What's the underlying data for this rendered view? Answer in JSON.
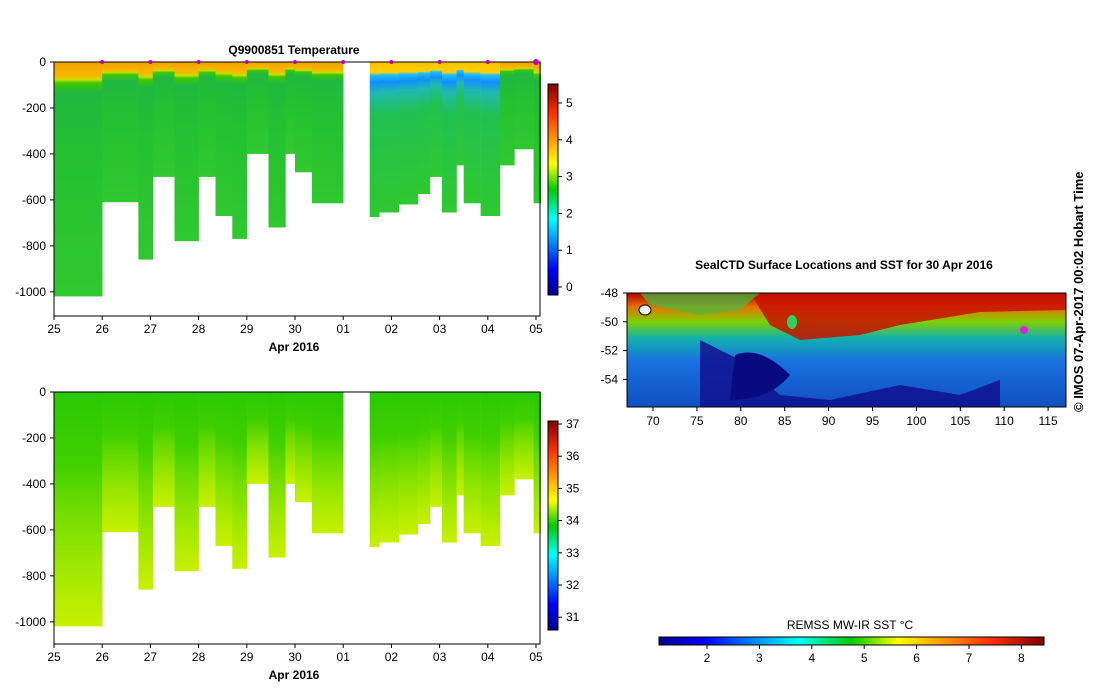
{
  "top_chart": {
    "title": "Q9900851  Temperature",
    "xlabel": "Apr 2016",
    "x_ticks": [
      "25",
      "26",
      "27",
      "28",
      "29",
      "30",
      "01",
      "02",
      "03",
      "04",
      "05"
    ],
    "y_ticks": [
      "0",
      "-200",
      "-400",
      "-600",
      "-800",
      "-1000"
    ],
    "colorbar_ticks": [
      "5",
      "4",
      "3",
      "2",
      "1",
      "0"
    ]
  },
  "bottom_chart": {
    "xlabel": "Apr 2016",
    "x_ticks": [
      "25",
      "26",
      "27",
      "28",
      "29",
      "30",
      "01",
      "02",
      "03",
      "04",
      "05"
    ],
    "y_ticks": [
      "0",
      "-200",
      "-400",
      "-600",
      "-800",
      "-1000"
    ],
    "colorbar_ticks": [
      "37",
      "36",
      "35",
      "34",
      "33",
      "32",
      "31"
    ]
  },
  "map": {
    "title": "SealCTD Surface Locations and SST for 30 Apr 2016",
    "lat_ticks": [
      "-48",
      "-50",
      "-52",
      "-54"
    ],
    "lon_ticks": [
      "70",
      "75",
      "80",
      "85",
      "90",
      "95",
      "100",
      "105",
      "110",
      "115"
    ],
    "colorbar_title": "REMSS MW-IR SST °C",
    "colorbar_ticks": [
      "2",
      "3",
      "4",
      "5",
      "6",
      "7",
      "8"
    ]
  },
  "credit": "© IMOS 07-Apr-2017 00:02 Hobart Time",
  "chart_data": [
    {
      "type": "heatmap",
      "title": "Q9900851  Temperature",
      "xlabel": "Apr 2016",
      "ylabel": "",
      "xlim": [
        25,
        35.1
      ],
      "ylim": [
        -1100,
        0
      ],
      "clim": [
        -0.2,
        5.6
      ],
      "x_day_labels": [
        "25",
        "26",
        "27",
        "28",
        "29",
        "30",
        "01",
        "02",
        "03",
        "04",
        "05"
      ],
      "profiles": [
        {
          "t0": 25.0,
          "t1": 26.0,
          "depth": 1020
        },
        {
          "t0": 26.0,
          "t1": 26.75,
          "depth": 610
        },
        {
          "t0": 26.75,
          "t1": 27.05,
          "depth": 860
        },
        {
          "t0": 27.05,
          "t1": 27.5,
          "depth": 500
        },
        {
          "t0": 27.5,
          "t1": 28.0,
          "depth": 780
        },
        {
          "t0": 28.0,
          "t1": 28.35,
          "depth": 500
        },
        {
          "t0": 28.35,
          "t1": 28.7,
          "depth": 670
        },
        {
          "t0": 28.7,
          "t1": 29.0,
          "depth": 770
        },
        {
          "t0": 29.0,
          "t1": 29.45,
          "depth": 400
        },
        {
          "t0": 29.45,
          "t1": 29.8,
          "depth": 720
        },
        {
          "t0": 29.8,
          "t1": 30.0,
          "depth": 400
        },
        {
          "t0": 30.0,
          "t1": 30.35,
          "depth": 480
        },
        {
          "t0": 30.35,
          "t1": 31.0,
          "depth": 615
        },
        {
          "t0": 31.55,
          "t1": 31.75,
          "depth": 675
        },
        {
          "t0": 31.75,
          "t1": 32.15,
          "depth": 655
        },
        {
          "t0": 32.15,
          "t1": 32.55,
          "depth": 620
        },
        {
          "t0": 32.55,
          "t1": 32.8,
          "depth": 575
        },
        {
          "t0": 32.8,
          "t1": 33.05,
          "depth": 500
        },
        {
          "t0": 33.05,
          "t1": 33.35,
          "depth": 655
        },
        {
          "t0": 33.35,
          "t1": 33.5,
          "depth": 450
        },
        {
          "t0": 33.5,
          "t1": 33.85,
          "depth": 615
        },
        {
          "t0": 33.85,
          "t1": 34.25,
          "depth": 670
        },
        {
          "t0": 34.25,
          "t1": 34.55,
          "depth": 450
        },
        {
          "t0": 34.55,
          "t1": 34.95,
          "depth": 380
        },
        {
          "t0": 34.95,
          "t1": 35.1,
          "depth": 615
        }
      ]
    },
    {
      "type": "heatmap",
      "title": "",
      "xlabel": "Apr 2016",
      "ylabel": "",
      "xlim": [
        25,
        35.1
      ],
      "ylim": [
        -1100,
        0
      ],
      "clim": [
        30.6,
        37.2
      ],
      "x_day_labels": [
        "25",
        "26",
        "27",
        "28",
        "29",
        "30",
        "01",
        "02",
        "03",
        "04",
        "05"
      ]
    },
    {
      "type": "heatmap",
      "title": "SealCTD Surface Locations and SST for 30 Apr 2016",
      "xlim": [
        67,
        117
      ],
      "ylim": [
        -56,
        -48
      ],
      "clim": [
        1,
        8.5
      ],
      "colorbar_label": "REMSS MW-IR SST °C"
    }
  ]
}
